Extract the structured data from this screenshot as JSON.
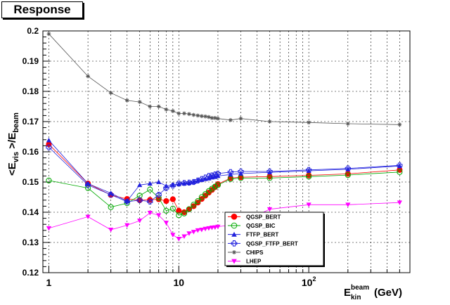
{
  "chart_data": {
    "type": "scatter",
    "title": "Response",
    "ylabel": "<E_vis>/E_beam",
    "ylabel_parts": {
      "main": "<E",
      "sub1": "vis",
      "mid": " >/E",
      "sub2": "beam"
    },
    "xlabel_parts": {
      "main": "E",
      "sup": "beam",
      "sub": "kin",
      "unit": "(GeV)"
    },
    "x_scale": "log",
    "xlim": [
      0.9,
      600
    ],
    "ylim": [
      0.12,
      0.2
    ],
    "grid": true,
    "legend_position": "lower-right",
    "x_ticks": [
      {
        "value": 1,
        "label": "1"
      },
      {
        "value": 10,
        "label": "10"
      },
      {
        "value": 100,
        "label": "10",
        "sup": "2"
      }
    ],
    "y_ticks": [
      0.12,
      0.13,
      0.14,
      0.15,
      0.16,
      0.17,
      0.18,
      0.19,
      0.2
    ],
    "series": [
      {
        "name": "QGSP_BERT",
        "color": "#ff0000",
        "marker": "circle-filled",
        "x": [
          1,
          2,
          3,
          4,
          5,
          6,
          7,
          8,
          9,
          10,
          11,
          12,
          13,
          14,
          15,
          16,
          17,
          18,
          19,
          20,
          25,
          30,
          50,
          100,
          200,
          500
        ],
        "y": [
          0.1625,
          0.1495,
          0.1457,
          0.1444,
          0.144,
          0.1441,
          0.1443,
          0.1437,
          0.1443,
          0.1405,
          0.14,
          0.141,
          0.142,
          0.1432,
          0.1444,
          0.1455,
          0.1465,
          0.1474,
          0.1483,
          0.1493,
          0.1513,
          0.1516,
          0.1518,
          0.1522,
          0.1527,
          0.154
        ]
      },
      {
        "name": "QGSP_BIC",
        "color": "#00aa00",
        "marker": "circle-open",
        "x": [
          1,
          2,
          3,
          4,
          5,
          6,
          7,
          8,
          9,
          10,
          11,
          12,
          13,
          14,
          15,
          16,
          17,
          18,
          19,
          20,
          25,
          30,
          50,
          100,
          200,
          500
        ],
        "y": [
          0.1505,
          0.148,
          0.1417,
          0.143,
          0.1455,
          0.1475,
          0.1448,
          0.1405,
          0.1412,
          0.139,
          0.1396,
          0.141,
          0.1425,
          0.1437,
          0.145,
          0.146,
          0.147,
          0.1478,
          0.1485,
          0.149,
          0.151,
          0.1513,
          0.1513,
          0.1518,
          0.1523,
          0.1533
        ]
      },
      {
        "name": "FTFP_BERT",
        "color": "#2020dd",
        "marker": "triangle-filled",
        "x": [
          1,
          2,
          3,
          4,
          5,
          6,
          7,
          8,
          9,
          10,
          11,
          12,
          13,
          14,
          15,
          16,
          17,
          18,
          19,
          20,
          25,
          30,
          50,
          100,
          200,
          500
        ],
        "y": [
          0.1638,
          0.1495,
          0.1463,
          0.1437,
          0.149,
          0.1495,
          0.15,
          0.1487,
          0.149,
          0.1493,
          0.1495,
          0.1497,
          0.15,
          0.1505,
          0.1507,
          0.151,
          0.1512,
          0.1515,
          0.1517,
          0.152,
          0.1525,
          0.1528,
          0.1532,
          0.1537,
          0.1542,
          0.1553
        ]
      },
      {
        "name": "QGSP_FTFP_BERT",
        "color": "#2020dd",
        "marker": "cross-open",
        "x": [
          1,
          2,
          3,
          4,
          5,
          6,
          7,
          8,
          9,
          10,
          11,
          12,
          13,
          14,
          15,
          16,
          17,
          18,
          19,
          20,
          25,
          30,
          50,
          100,
          200,
          500
        ],
        "y": [
          0.1615,
          0.149,
          0.1458,
          0.1435,
          0.144,
          0.1435,
          0.1458,
          0.148,
          0.1488,
          0.1495,
          0.1497,
          0.1498,
          0.15,
          0.1505,
          0.151,
          0.1515,
          0.152,
          0.1522,
          0.1525,
          0.1528,
          0.1533,
          0.1535,
          0.1535,
          0.154,
          0.1545,
          0.1555
        ]
      },
      {
        "name": "CHIPS",
        "color": "#555555",
        "marker": "star",
        "x": [
          1,
          2,
          3,
          4,
          5,
          6,
          7,
          8,
          9,
          10,
          11,
          12,
          13,
          14,
          15,
          16,
          17,
          18,
          19,
          20,
          25,
          30,
          50,
          100,
          200,
          500
        ],
        "y": [
          0.199,
          0.185,
          0.1795,
          0.177,
          0.1765,
          0.175,
          0.175,
          0.174,
          0.1735,
          0.1727,
          0.1727,
          0.1725,
          0.1722,
          0.172,
          0.1718,
          0.1717,
          0.1715,
          0.1712,
          0.1712,
          0.171,
          0.1705,
          0.171,
          0.17,
          0.1697,
          0.1693,
          0.169
        ]
      },
      {
        "name": "LHEP",
        "color": "#ff00ff",
        "marker": "triangle-down-filled",
        "x": [
          1,
          2,
          3,
          4,
          5,
          6,
          7,
          8,
          9,
          10,
          11,
          12,
          13,
          14,
          15,
          16,
          17,
          18,
          19,
          20,
          25,
          30,
          50,
          100,
          200,
          500
        ],
        "y": [
          0.1347,
          0.1385,
          0.1342,
          0.1357,
          0.1372,
          0.1398,
          0.139,
          0.1365,
          0.1325,
          0.1312,
          0.132,
          0.133,
          0.1335,
          0.134,
          0.1342,
          0.1345,
          0.1347,
          0.1349,
          0.135,
          0.1352,
          0.1358,
          0.1364,
          0.141,
          0.1425,
          0.1425,
          0.1432
        ]
      }
    ]
  }
}
